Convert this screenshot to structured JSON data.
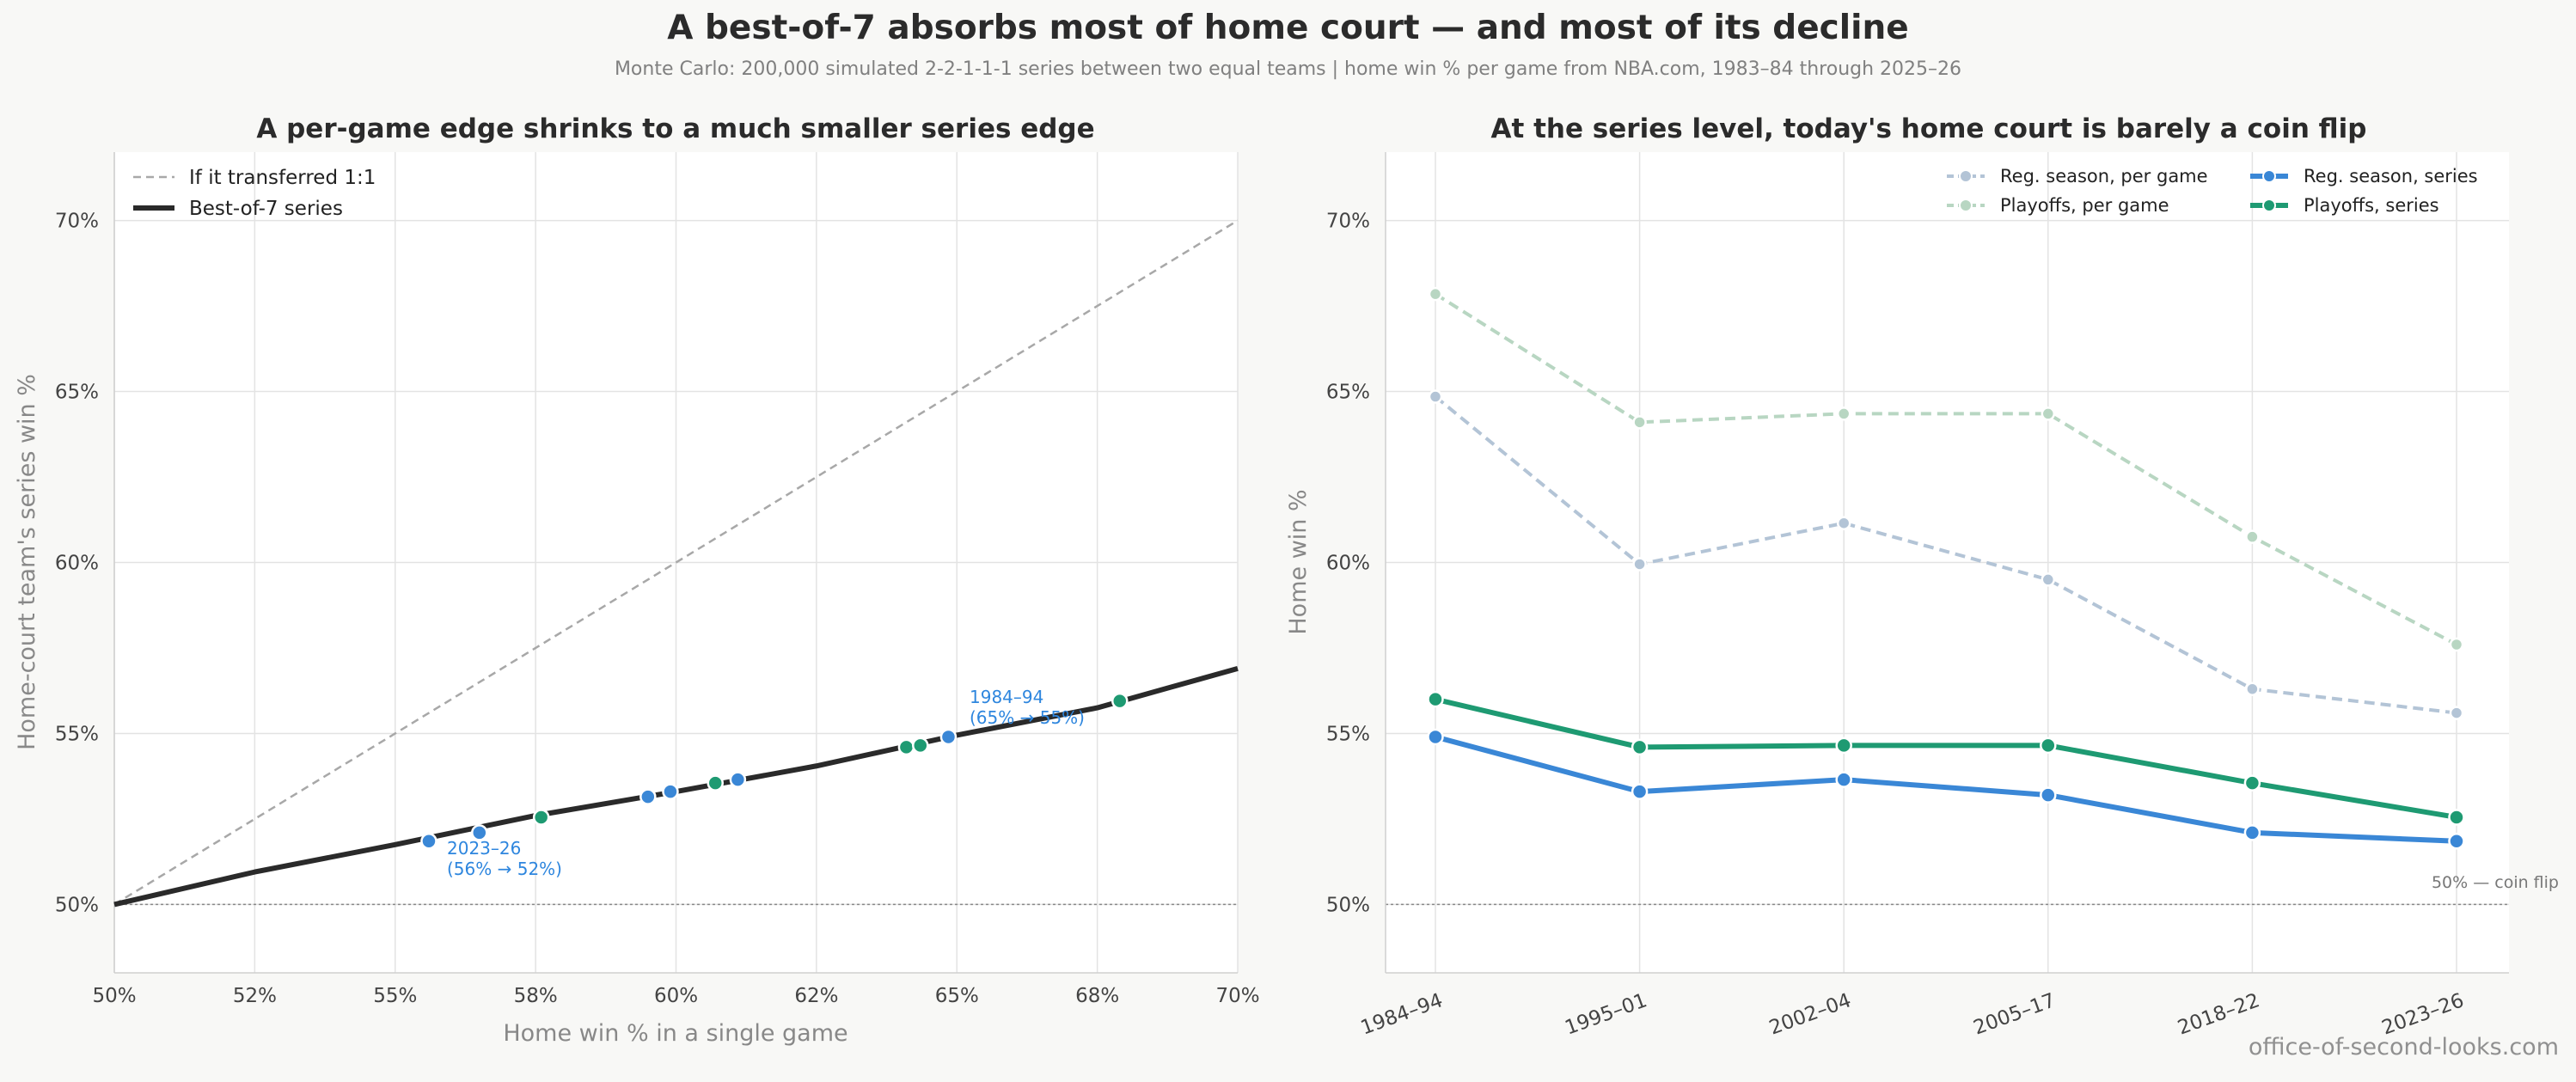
{
  "title": "A best-of-7 absorbs most of home court — and most of its decline",
  "subtitle": "Monte Carlo: 200,000 simulated 2-2-1-1-1 series between two equal teams  |  home win % per game from NBA.com, 1983–84 through 2025–26",
  "credit": "office-of-second-looks.com",
  "colors": {
    "regular_series": "#3a87d6",
    "playoff_series": "#1e9a72",
    "regular_game": "#b3c4d6",
    "playoff_game": "#b8d6c2",
    "identity": "#a8a8a8",
    "curve": "#2a2a2a"
  },
  "chart_data": [
    {
      "type": "line",
      "title": "A per-game edge shrinks to a much smaller series edge",
      "xlabel": "Home win % in a single game",
      "ylabel": "Home-court team's series win %",
      "xlim": [
        50,
        70
      ],
      "ylim": [
        48,
        72
      ],
      "x_ticks": [
        "50%",
        "52%",
        "55%",
        "58%",
        "60%",
        "62%",
        "65%",
        "68%",
        "70%"
      ],
      "y_ticks": [
        "50%",
        "55%",
        "60%",
        "65%",
        "70%"
      ],
      "grid": true,
      "legend_position": "top-left",
      "series": [
        {
          "name": "If it transferred 1:1",
          "style": "dashed",
          "x": [
            50,
            70
          ],
          "y": [
            50,
            70
          ]
        },
        {
          "name": "Best-of-7 series",
          "style": "solid",
          "x": [
            50,
            52.5,
            55,
            57.5,
            60,
            62.5,
            65,
            67.5,
            68.8,
            70
          ],
          "y": [
            50,
            50.95,
            51.75,
            52.6,
            53.3,
            54.05,
            54.95,
            55.75,
            56.35,
            56.9
          ]
        }
      ],
      "points": [
        {
          "x": 55.6,
          "y": 51.85,
          "group": "regular"
        },
        {
          "x": 56.5,
          "y": 52.1,
          "group": "regular"
        },
        {
          "x": 57.6,
          "y": 52.55,
          "group": "playoff"
        },
        {
          "x": 59.5,
          "y": 53.15,
          "group": "regular"
        },
        {
          "x": 59.9,
          "y": 53.3,
          "group": "regular"
        },
        {
          "x": 60.7,
          "y": 53.55,
          "group": "playoff"
        },
        {
          "x": 61.1,
          "y": 53.65,
          "group": "regular"
        },
        {
          "x": 64.1,
          "y": 54.6,
          "group": "playoff"
        },
        {
          "x": 64.35,
          "y": 54.65,
          "group": "playoff"
        },
        {
          "x": 64.85,
          "y": 54.9,
          "group": "regular"
        },
        {
          "x": 67.9,
          "y": 55.95,
          "group": "playoff"
        }
      ],
      "annotations": [
        {
          "line1": "1984–94",
          "line2": "(65% → 55%)",
          "x": 65.2,
          "y": 56.0
        },
        {
          "line1": "2023–26",
          "line2": "(56% → 52%)",
          "x": 56.0,
          "y": 51.1
        }
      ]
    },
    {
      "type": "line",
      "title": "At the series level, today's home court is barely a coin flip",
      "xlabel": "",
      "ylabel": "Home win %",
      "categories": [
        "1984–94",
        "1995–01",
        "2002–04",
        "2005–17",
        "2018–22",
        "2023–26"
      ],
      "ylim": [
        48,
        72
      ],
      "y_ticks": [
        "50%",
        "55%",
        "60%",
        "65%",
        "70%"
      ],
      "grid": true,
      "legend_position": "top-right",
      "reference_line": {
        "y": 50,
        "label": "50% — coin flip"
      },
      "series": [
        {
          "name": "Reg. season, per game",
          "style": "dashed",
          "color_key": "regular_game",
          "values": [
            64.85,
            59.95,
            61.15,
            59.5,
            56.3,
            55.6
          ]
        },
        {
          "name": "Playoffs, per game",
          "style": "dashed",
          "color_key": "playoff_game",
          "values": [
            67.85,
            64.1,
            64.35,
            64.35,
            60.75,
            57.6
          ]
        },
        {
          "name": "Reg. season, series",
          "style": "solid",
          "color_key": "regular_series",
          "values": [
            54.9,
            53.3,
            53.65,
            53.2,
            52.1,
            51.85
          ]
        },
        {
          "name": "Playoffs, series",
          "style": "solid",
          "color_key": "playoff_series",
          "values": [
            56.0,
            54.6,
            54.65,
            54.65,
            53.55,
            52.55
          ]
        }
      ]
    }
  ]
}
